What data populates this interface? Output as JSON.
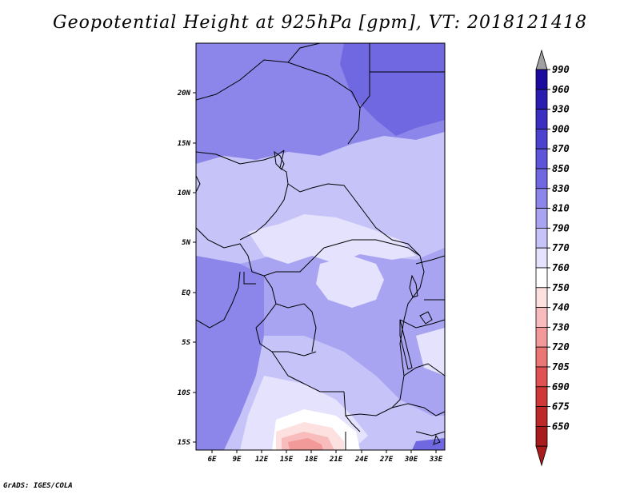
{
  "title": "Geopotential Height at 925hPa [gpm], VT: 2018121418",
  "footer": "GrADS: IGES/COLA",
  "map": {
    "lat_labels": [
      "20N",
      "15N",
      "10N",
      "5N",
      "EQ",
      "5S",
      "10S",
      "15S"
    ],
    "lon_labels": [
      "6E",
      "9E",
      "12E",
      "15E",
      "18E",
      "21E",
      "24E",
      "27E",
      "30E",
      "33E"
    ]
  },
  "colorbar": {
    "levels": [
      "990",
      "960",
      "930",
      "900",
      "870",
      "850",
      "830",
      "810",
      "790",
      "770",
      "760",
      "750",
      "740",
      "730",
      "720",
      "705",
      "690",
      "675",
      "650"
    ],
    "colors": [
      "#1a0aa0",
      "#2a1db0",
      "#3a2fc0",
      "#4b42cf",
      "#5d56da",
      "#7068e0",
      "#8c86ea",
      "#a9a4f2",
      "#c6c3f8",
      "#e4e2fc",
      "#ffffff",
      "#fde0e0",
      "#f8bcbc",
      "#f29a9a",
      "#ea7676",
      "#e05252",
      "#d03838",
      "#bd2828",
      "#a81c1c"
    ],
    "over_color": "#a0a0a0",
    "under_color": "#a81c1c"
  }
}
